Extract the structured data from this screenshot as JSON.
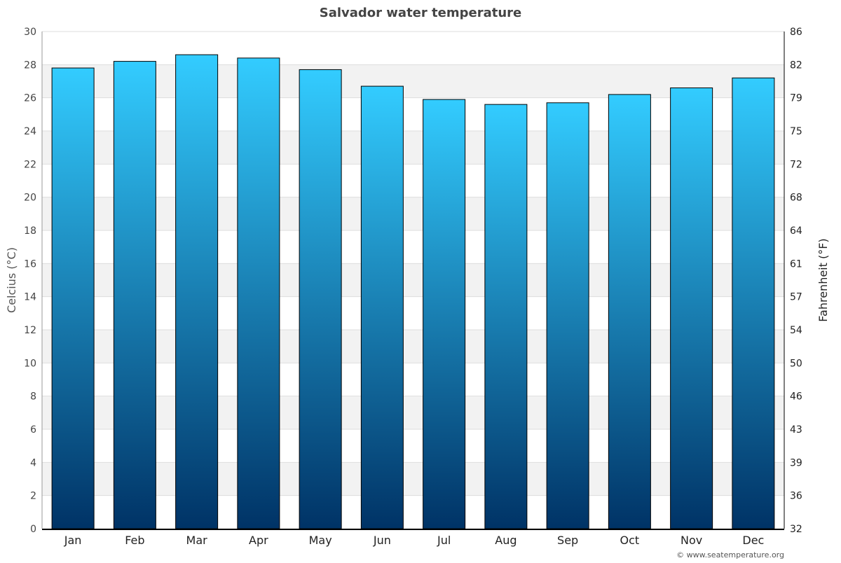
{
  "chart_data": {
    "type": "bar",
    "title": "Salvador water temperature",
    "xlabel": "",
    "ylabel": "Celcius (°C)",
    "y2label": "Fahrenheit (°F)",
    "categories": [
      "Jan",
      "Feb",
      "Mar",
      "Apr",
      "May",
      "Jun",
      "Jul",
      "Aug",
      "Sep",
      "Oct",
      "Nov",
      "Dec"
    ],
    "values": [
      27.8,
      28.2,
      28.6,
      28.4,
      27.7,
      26.7,
      25.9,
      25.6,
      25.7,
      26.2,
      26.6,
      27.2
    ],
    "ylim": [
      0,
      30
    ],
    "yticks": [
      0,
      2,
      4,
      6,
      8,
      10,
      12,
      14,
      16,
      18,
      20,
      22,
      24,
      26,
      28,
      30
    ],
    "y2ticks": [
      "32",
      "36",
      "39",
      "43",
      "46",
      "50",
      "54",
      "57",
      "61",
      "64",
      "68",
      "72",
      "75",
      "79",
      "82",
      "86"
    ],
    "grid": true,
    "colors": {
      "bar_top": "#33ccff",
      "bar_bottom": "#003366",
      "band": "#f2f2f2"
    }
  },
  "credit": "© www.seatemperature.org"
}
